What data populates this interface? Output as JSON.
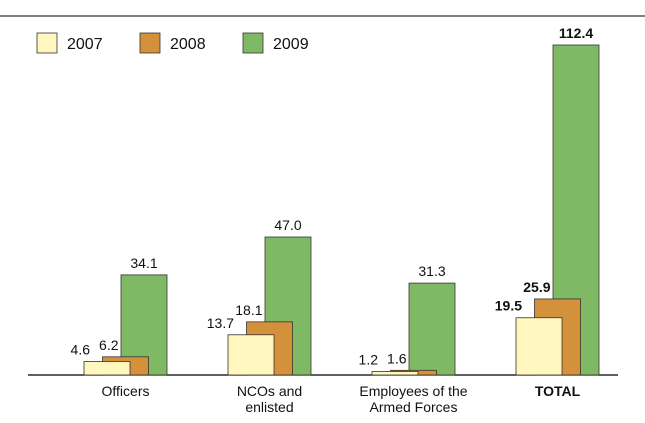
{
  "chart_data": {
    "type": "bar",
    "categories": [
      "Officers",
      "NCOs and\nenlisted",
      "Employees of the\nArmed Forces",
      "TOTAL"
    ],
    "series": [
      {
        "name": "2007",
        "color": "#fff7bd",
        "values": [
          4.6,
          13.7,
          1.2,
          19.5
        ]
      },
      {
        "name": "2008",
        "color": "#d4913b",
        "values": [
          6.2,
          18.1,
          1.6,
          25.9
        ]
      },
      {
        "name": "2009",
        "color": "#80b963",
        "values": [
          34.1,
          47.0,
          31.3,
          112.4
        ],
        "value_labels": [
          "34.1",
          "47.0",
          "31.3",
          "112.4"
        ]
      }
    ]
  }
}
